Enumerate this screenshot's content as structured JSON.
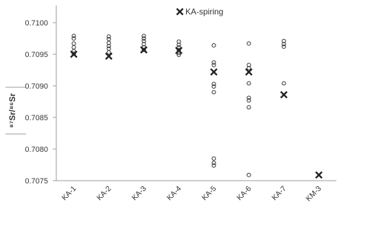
{
  "chart_data": {
    "type": "scatter",
    "y_label": "⁸⁷Sr/⁸⁶Sr",
    "categories": [
      "KA-1",
      "KA-2",
      "KA-3",
      "KA-4",
      "KA-5",
      "KA-6",
      "KA-7",
      "KM-3"
    ],
    "series": [
      {
        "marker": "circle",
        "color": "#333333",
        "values": [
          [
            0.70979,
            0.70975,
            0.70967,
            0.70961,
            0.70955,
            0.70951
          ],
          [
            0.70978,
            0.70974,
            0.70968,
            0.70963,
            0.70959,
            0.70953
          ],
          [
            0.70979,
            0.70975,
            0.70971,
            0.70966,
            0.70961,
            0.70957
          ],
          [
            0.7097,
            0.70965,
            0.70961,
            0.70957,
            0.70952,
            0.70949
          ],
          [
            0.70964,
            0.70937,
            0.70933,
            0.70903,
            0.70899,
            0.7089,
            0.70785,
            0.70778,
            0.70774
          ],
          [
            0.70967,
            0.70933,
            0.70928,
            0.70904,
            0.70881,
            0.70877,
            0.70866,
            0.70759
          ],
          [
            0.70971,
            0.70966,
            0.70962,
            0.70904
          ],
          []
        ]
      },
      {
        "name": "KA-spiring",
        "marker": "x",
        "color": "#222222",
        "values": [
          0.7095,
          0.70947,
          0.70957,
          0.70956,
          0.70922,
          0.70922,
          0.70886,
          0.70759
        ]
      }
    ],
    "ylim": [
      0.7075,
      0.71
    ],
    "yticks": [
      {
        "value": 0.7075,
        "label": "0.7075"
      },
      {
        "value": 0.708,
        "label": "0.7080"
      },
      {
        "value": 0.7085,
        "label": "0.7085"
      },
      {
        "value": 0.709,
        "label": "0.7090"
      },
      {
        "value": 0.7095,
        "label": "0.7095"
      },
      {
        "value": 0.71,
        "label": "0.7100"
      }
    ],
    "grid": false
  }
}
